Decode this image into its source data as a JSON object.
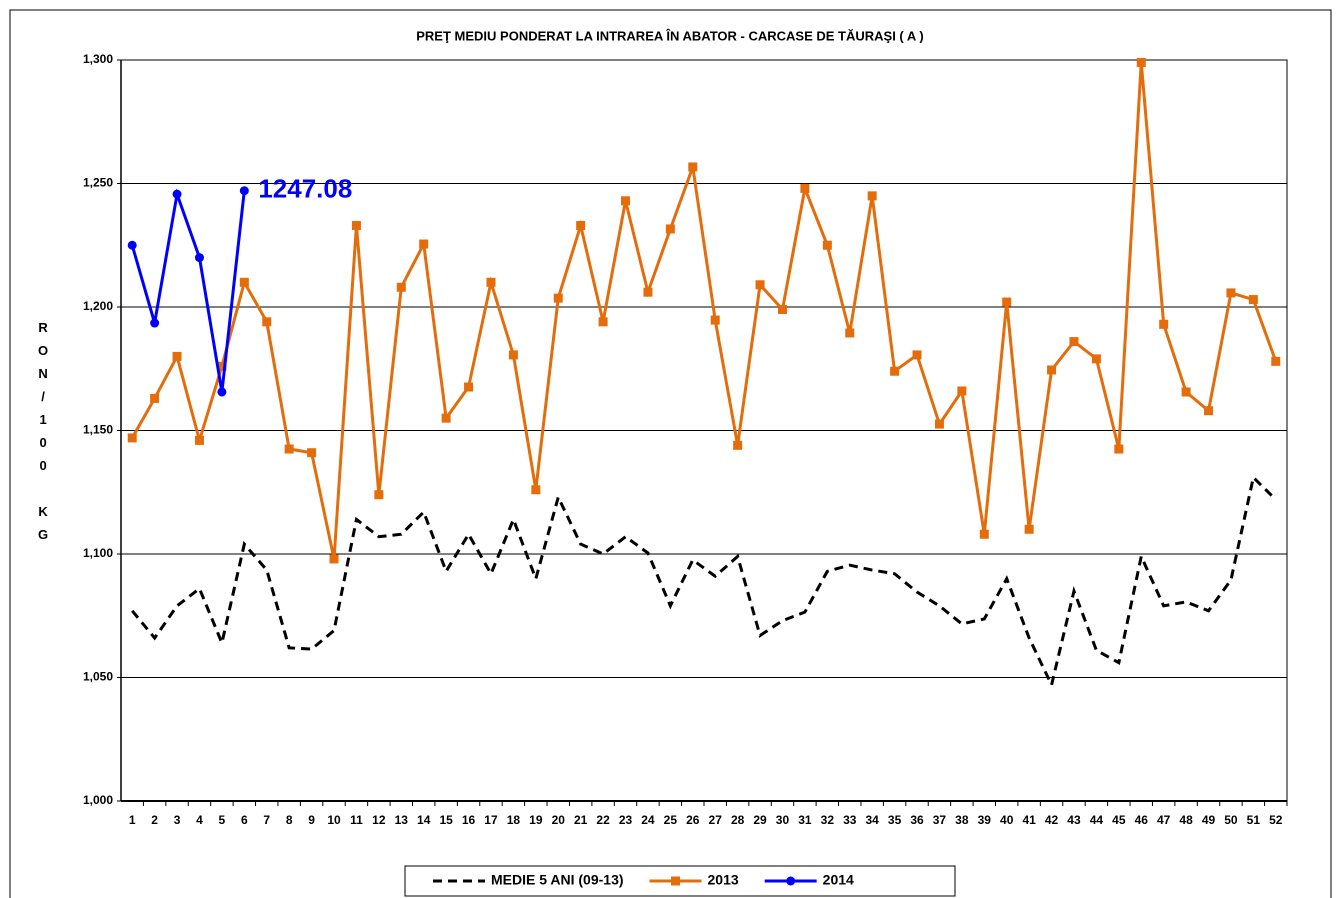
{
  "chart_data": {
    "type": "line",
    "title": "PREŢ MEDIU PONDERAT LA INTRAREA ÎN ABATOR - CARCASE DE TĂURAŞI ( A )",
    "y_label": "RON/100 KG",
    "annotation": {
      "text": "1247.08",
      "series": 2,
      "index": 5
    },
    "categories": [
      "1",
      "2",
      "3",
      "4",
      "5",
      "6",
      "7",
      "8",
      "9",
      "10",
      "11",
      "12",
      "13",
      "14",
      "15",
      "16",
      "17",
      "18",
      "19",
      "20",
      "21",
      "22",
      "23",
      "24",
      "25",
      "26",
      "27",
      "28",
      "29",
      "30",
      "31",
      "32",
      "33",
      "34",
      "35",
      "36",
      "37",
      "38",
      "39",
      "40",
      "41",
      "42",
      "43",
      "44",
      "45",
      "46",
      "47",
      "48",
      "49",
      "50",
      "51",
      "52"
    ],
    "series": [
      {
        "name": "MEDIE 5 ANI (09-13)",
        "color": "#000000",
        "dash": true,
        "marker": "none",
        "values": [
          1077,
          1066,
          1079,
          1086,
          1064,
          1104,
          1093.5,
          1062,
          1061.5,
          1069,
          1114,
          1107,
          1108,
          1117,
          1093,
          1108,
          1092,
          1114,
          1090,
          1123,
          1104,
          1100,
          1107,
          1100.4,
          1079,
          1097.6,
          1091,
          1099,
          1067,
          1073,
          1076.5,
          1093,
          1095.5,
          1093.5,
          1092,
          1084.6,
          1079,
          1071.7,
          1073.7,
          1090,
          1066,
          1047,
          1085,
          1061,
          1056,
          1099,
          1079,
          1080.6,
          1077,
          1089.5,
          1131,
          1122
        ]
      },
      {
        "name": "2013",
        "color": "#e46c0a",
        "dash": false,
        "marker": "square",
        "values": [
          1147,
          1163,
          1180,
          1146,
          1176,
          1210,
          1194,
          1142.5,
          1141,
          1098,
          1233,
          1124,
          1208,
          1225.5,
          1155,
          1167.6,
          1210,
          1180.6,
          1126,
          1203.6,
          1233,
          1194,
          1243,
          1206,
          1231.6,
          1256.7,
          1194.7,
          1144,
          1209,
          1199,
          1248,
          1225,
          1189.5,
          1245,
          1174,
          1180.6,
          1152.6,
          1166,
          1108,
          1202,
          1110,
          1174.5,
          1186,
          1179,
          1142.5,
          1299,
          1193,
          1165.6,
          1158,
          1205.7,
          1203,
          1178
        ]
      },
      {
        "name": "2014",
        "color": "#0000ff",
        "dash": false,
        "marker": "circle",
        "values": [
          1225,
          1193.5,
          1245.7,
          1220,
          1165.6,
          1247.08,
          null,
          null,
          null,
          null,
          null,
          null,
          null,
          null,
          null,
          null,
          null,
          null,
          null,
          null,
          null,
          null,
          null,
          null,
          null,
          null,
          null,
          null,
          null,
          null,
          null,
          null,
          null,
          null,
          null,
          null,
          null,
          null,
          null,
          null,
          null,
          null,
          null,
          null,
          null,
          null,
          null,
          null,
          null,
          null,
          null,
          null
        ]
      }
    ],
    "ylim": [
      1000,
      1300
    ],
    "yticks": [
      {
        "value": 1000,
        "label": "1,000"
      },
      {
        "value": 1050,
        "label": "1,050"
      },
      {
        "value": 1100,
        "label": "1,100"
      },
      {
        "value": 1150,
        "label": "1,150"
      },
      {
        "value": 1200,
        "label": "1,200"
      },
      {
        "value": 1250,
        "label": "1,250"
      },
      {
        "value": 1300,
        "label": "1,300"
      }
    ],
    "grid": true,
    "legend": "bottom"
  }
}
